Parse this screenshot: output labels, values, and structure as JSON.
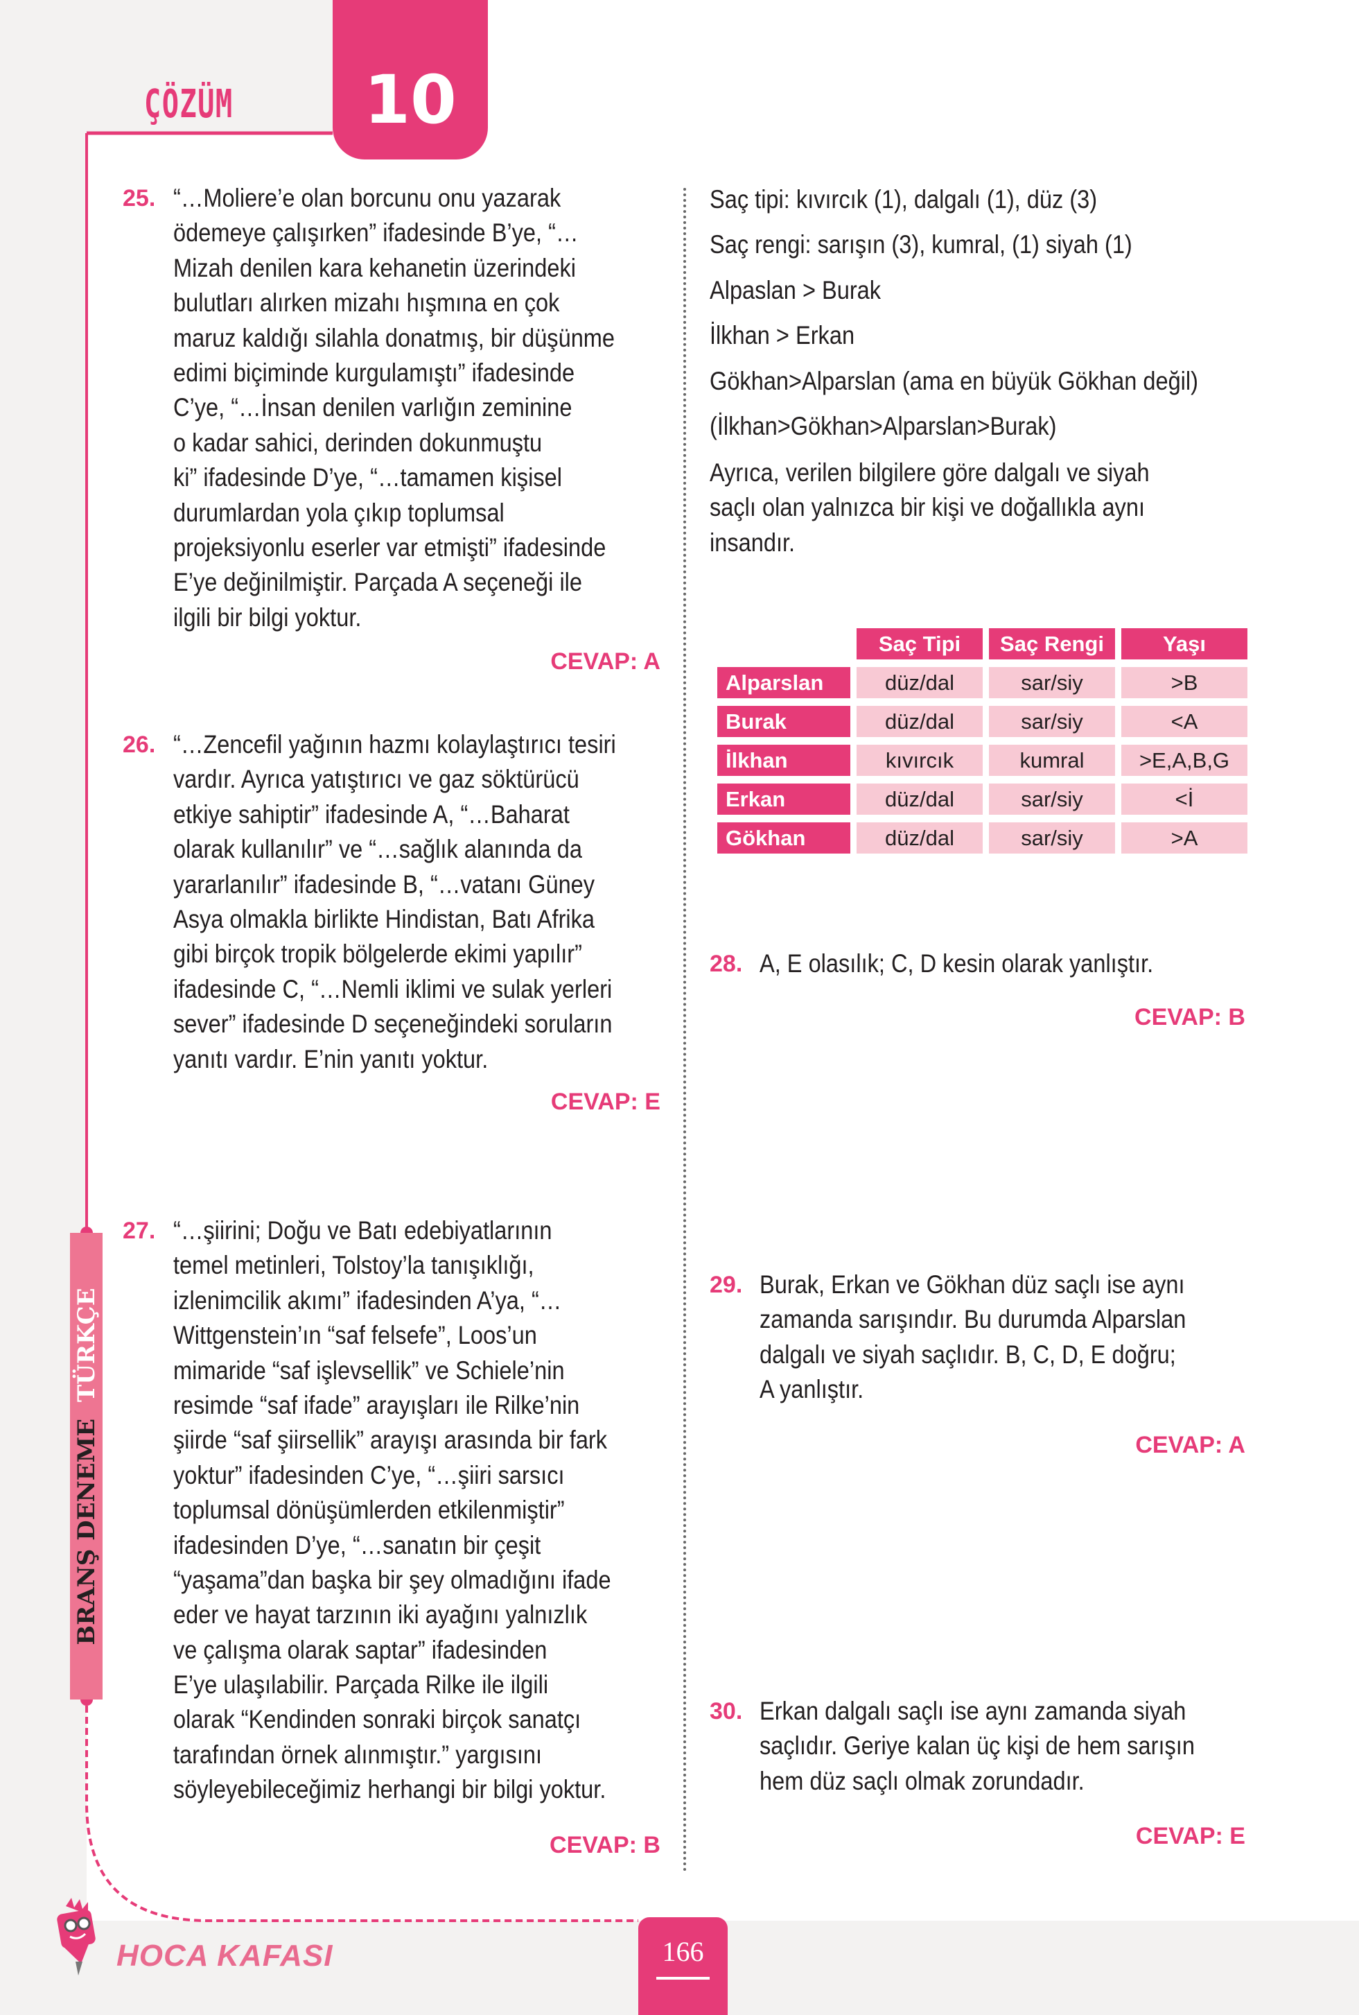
{
  "header": {
    "section_title": "ÇÖZÜM",
    "test_number": "10"
  },
  "sidebar": {
    "label_main": "BRANŞ DENEME",
    "label_subject": "TÜRKÇE"
  },
  "colors": {
    "accent": "#e63b78",
    "table_cell": "#f8c9d4",
    "sidebar": "#ee7592",
    "background": "#f3f2f1"
  },
  "questions": {
    "q25": {
      "number": "25.",
      "answer": "CEVAP: A",
      "lines": [
        "“…Moliere’e olan borcunu onu yazarak",
        "ödemeye çalışırken” ifadesinde B’ye, “…",
        "Mizah denilen kara kehanetin üzerindeki",
        "bulutları  alırken  mizahı hışmına en çok",
        "maruz kaldığı silahla donatmış, bir düşünme",
        "edimi biçiminde kurgulamıştı” ifadesinde",
        "C’ye, “…İnsan denilen varlığın zeminine",
        "o kadar sahici, derinden dokunmuştu",
        "ki” ifadesinde D’ye, “…tamamen kişisel",
        "durumlardan yola çıkıp toplumsal",
        "projeksiyonlu  eserler var etmişti” ifadesinde",
        "E’ye değinilmiştir. Parçada A seçeneği ile",
        "ilgili bir bilgi yoktur."
      ]
    },
    "q26": {
      "number": "26.",
      "answer": "CEVAP: E",
      "lines": [
        "“…Zencefil yağının hazmı kolaylaştırıcı tesiri",
        "vardır. Ayrıca yatıştırıcı ve gaz söktürücü",
        "etkiye sahiptir” ifadesinde A, “…Baharat",
        "olarak kullanılır” ve “…sağlık alanında da",
        "yararlanılır” ifadesinde B, “…vatanı Güney",
        "Asya olmakla birlikte Hindistan, Batı Afrika",
        "gibi birçok tropik bölgelerde ekimi yapılır”",
        "ifadesinde C, “…Nemli iklimi ve sulak yerleri",
        "sever” ifadesinde D seçeneğindeki soruların",
        "yanıtı vardır. E’nin yanıtı yoktur."
      ]
    },
    "q27": {
      "number": "27.",
      "answer": "CEVAP: B",
      "lines": [
        "“…şiirini; Doğu ve Batı  edebiyatlarının",
        "temel metinleri, Tolstoy’la tanışıklığı,",
        "izlenimcilik akımı” ifadesinden A’ya, “…",
        "Wittgenstein’ın “saf felsefe”, Loos’un",
        "mimaride “saf işlevsellik” ve Schiele’nin",
        "resimde “saf ifade” arayışları ile Rilke’nin",
        "şiirde “saf şiirsellik” arayışı arasında bir fark",
        "yoktur” ifadesinden C’ye, “…şiiri sarsıcı",
        "toplumsal dönüşümlerden etkilenmiştir”",
        "ifadesinden D’ye, “…sanatın bir çeşit",
        "“yaşama”dan başka bir şey olmadığını ifade",
        "eder ve hayat tarzının iki ayağını yalnızlık",
        "ve çalışma olarak saptar” ifadesinden",
        "E’ye ulaşılabilir. Parçada Rilke ile ilgili",
        "olarak “Kendinden sonraki birçok sanatçı",
        "tarafından örnek alınmıştır.” yargısını",
        "söyleyebileceğimiz herhangi bir bilgi yoktur."
      ]
    },
    "q28": {
      "number": "28.",
      "answer": "CEVAP: B",
      "lines": [
        "A, E olasılık; C, D kesin olarak yanlıştır."
      ]
    },
    "q29": {
      "number": "29.",
      "answer": "CEVAP: A",
      "lines": [
        "Burak, Erkan ve Gökhan düz saçlı ise aynı",
        "zamanda sarışındır. Bu durumda Alparslan",
        "dalgalı ve siyah saçlıdır.  B, C, D, E doğru;",
        "A yanlıştır."
      ]
    },
    "q30": {
      "number": "30.",
      "answer": "CEVAP: E",
      "lines": [
        "Erkan dalgalı saçlı ise aynı zamanda siyah",
        "saçlıdır. Geriye kalan üç kişi de hem sarışın",
        "hem düz saçlı olmak zorundadır."
      ]
    }
  },
  "q27_solution": {
    "facts": [
      "Saç tipi: kıvırcık (1), dalgalı (1), düz (3)",
      "Saç rengi: sarışın (3), kumral, (1) siyah (1)",
      "Alpaslan > Burak",
      "İlkhan > Erkan",
      "Gökhan>Alparslan (ama en büyük Gökhan değil)",
      "(İlkhan>Gökhan>Alparslan>Burak)"
    ],
    "paragraph": [
      "Ayrıca, verilen bilgilere göre dalgalı ve siyah",
      "saçlı olan yalnızca bir kişi ve doğallıkla aynı",
      "insandır."
    ],
    "table": {
      "headers": [
        "Saç Tipi",
        "Saç Rengi",
        "Yaşı"
      ],
      "rows": [
        {
          "name": "Alparslan",
          "cells": [
            "düz/dal",
            "sar/siy",
            ">B"
          ]
        },
        {
          "name": "Burak",
          "cells": [
            "düz/dal",
            "sar/siy",
            "<A"
          ]
        },
        {
          "name": "İlkhan",
          "cells": [
            "kıvırcık",
            "kumral",
            ">E,A,B,G"
          ]
        },
        {
          "name": "Erkan",
          "cells": [
            "düz/dal",
            "sar/siy",
            "<İ"
          ]
        },
        {
          "name": "Gökhan",
          "cells": [
            "düz/dal",
            "sar/siy",
            ">A"
          ]
        }
      ]
    }
  },
  "footer": {
    "brand": "HOCA KAFASI",
    "page_number": "166"
  }
}
